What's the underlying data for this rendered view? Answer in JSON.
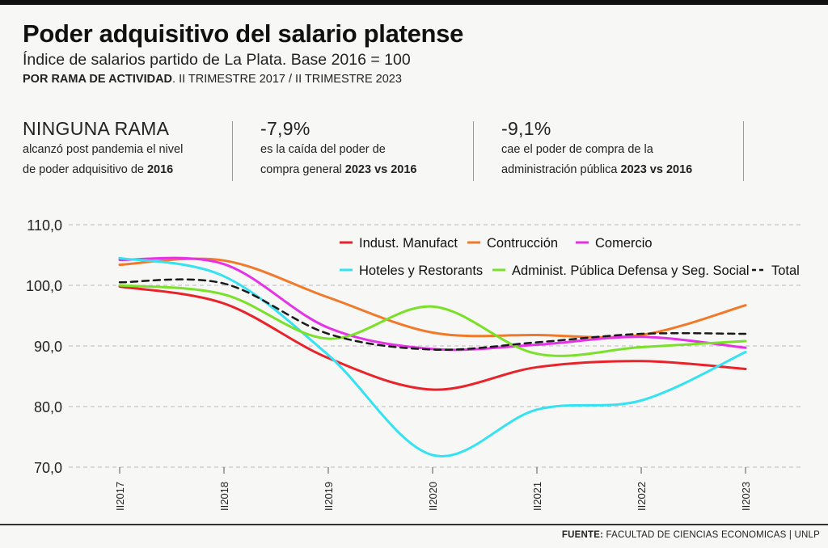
{
  "header": {
    "title": "Poder adquisitivo del salario platense",
    "subtitle": "Índice de salarios partido de La Plata. Base 2016 = 100",
    "subhead_bold": "POR RAMA DE ACTIVIDAD",
    "subhead_rest": ". II TRIMESTRE 2017 / II TRIMESTRE 2023"
  },
  "stats": [
    {
      "big": "NINGUNA RAMA",
      "line1": "alcanzó post pandemia el nivel",
      "line2_text": "de poder adquisitivo de ",
      "line2_bold": "2016"
    },
    {
      "big": "-7,9%",
      "line1": "es la caída del poder de",
      "line2_text": "compra general ",
      "line2_bold": "2023 vs 2016"
    },
    {
      "big": "-9,1%",
      "line1": "cae el poder de compra de la",
      "line2_text": "administración pública ",
      "line2_bold": "2023 vs 2016"
    }
  ],
  "footer": {
    "source_label": "FUENTE:",
    "source_text": " FACULTAD DE CIENCIAS ECONOMICAS | UNLP"
  },
  "chart_data": {
    "type": "line",
    "title": "",
    "xlabel": "",
    "ylabel": "",
    "categories": [
      "II2017",
      "II2018",
      "II2019",
      "II2020",
      "II2021",
      "II2022",
      "II2023"
    ],
    "ylim": [
      70,
      110
    ],
    "yticks": [
      70,
      80,
      90,
      100,
      110
    ],
    "ytick_labels": [
      "70,0",
      "80,0",
      "90,0",
      "100,0",
      "110,0"
    ],
    "grid": "horizontal dashed",
    "legend": "top-right",
    "series": [
      {
        "name": "Indust. Manufact",
        "color": "#e8232a",
        "dash": false,
        "values": [
          99.8,
          97.0,
          88.0,
          82.8,
          86.5,
          87.5,
          86.2
        ]
      },
      {
        "name": "Contrucción",
        "color": "#f07a2a",
        "dash": false,
        "values": [
          103.4,
          104.1,
          98.0,
          92.2,
          91.8,
          91.8,
          96.7
        ]
      },
      {
        "name": "Comercio",
        "color": "#e632e6",
        "dash": false,
        "values": [
          104.2,
          103.5,
          93.0,
          89.5,
          90.2,
          91.5,
          89.7
        ]
      },
      {
        "name": "Hoteles y Restorants",
        "color": "#35e2f2",
        "dash": false,
        "values": [
          104.5,
          101.5,
          88.5,
          72.0,
          79.5,
          81.0,
          89.0
        ]
      },
      {
        "name": "Administ. Pública Defensa y Seg. Social",
        "color": "#7ae02a",
        "dash": false,
        "values": [
          100.0,
          98.5,
          91.2,
          96.5,
          88.7,
          89.8,
          90.8
        ]
      },
      {
        "name": "Total",
        "color": "#1a1a1a",
        "dash": true,
        "values": [
          100.5,
          100.3,
          92.0,
          89.4,
          90.6,
          92.0,
          92.0
        ]
      }
    ]
  }
}
